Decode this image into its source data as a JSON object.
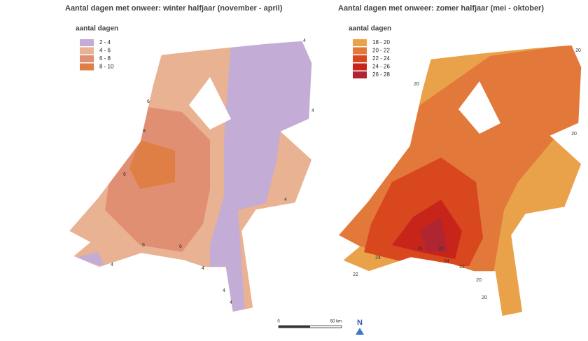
{
  "maps": [
    {
      "title": "Aantal dagen met onweer: winter halfjaar (november - april)",
      "legend": {
        "title": "aantal dagen",
        "items": [
          {
            "label": "2 - 4",
            "color": "#c3acd6"
          },
          {
            "label": "4 - 6",
            "color": "#e8b293"
          },
          {
            "label": "6 - 8",
            "color": "#e08f72"
          },
          {
            "label": "8 - 10",
            "color": "#e07f45"
          }
        ]
      },
      "isoline_labels": [
        4,
        4,
        4,
        4,
        4,
        4,
        6,
        8,
        6,
        6,
        6,
        4
      ]
    },
    {
      "title": "Aantal dagen met onweer: zomer halfjaar (mei - oktober)",
      "legend": {
        "title": "aantal dagen",
        "items": [
          {
            "label": "18 - 20",
            "color": "#eaa24a"
          },
          {
            "label": "20 - 22",
            "color": "#e2793a"
          },
          {
            "label": "22 - 24",
            "color": "#d9471f"
          },
          {
            "label": "24 - 26",
            "color": "#c8251a"
          },
          {
            "label": "26 - 28",
            "color": "#b02630"
          }
        ]
      },
      "isoline_labels": [
        20,
        20,
        20,
        22,
        24,
        26,
        26,
        24,
        22,
        20,
        20
      ]
    }
  ],
  "scale_bar": {
    "labels": [
      "0",
      "50 km"
    ]
  },
  "north_label": "N"
}
